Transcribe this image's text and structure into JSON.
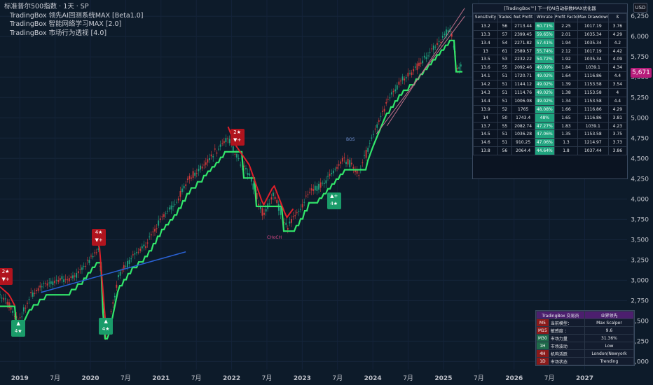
{
  "legend": {
    "symbol": "标准普尔500指数 · 1天 · SP",
    "indicators": [
      "TradingBox  领先AI回测系统MAX [Beta1.0]",
      "TradingBox  智能网络学习MAX [2.0]",
      "TradingBox  市场行为透视 [4.0]"
    ]
  },
  "currency": "USD",
  "last_price": "5,671",
  "colors": {
    "background": "#0d1b2a",
    "trend_up": "#32e66b",
    "trend_down": "#e0202a",
    "blue_line": "#2a62d6",
    "price_tag": "#b71c7a"
  },
  "chart_data": {
    "type": "line",
    "ylim": [
      1900,
      6450
    ],
    "xlim": [
      2018.72,
      2027.6
    ],
    "y_ticks": [
      2000,
      2250,
      2500,
      2750,
      3000,
      3250,
      3500,
      3750,
      4000,
      4250,
      4500,
      4750,
      5000,
      5250,
      5500,
      5750,
      6000,
      6250
    ],
    "y_tick_labels": [
      "2,000",
      "2,250",
      "2,500",
      "2,750",
      "3,000",
      "3,250",
      "3,500",
      "3,750",
      "4,000",
      "4,250",
      "4,500",
      "4,750",
      "5,000",
      "5,250",
      "5,500",
      "5,750",
      "6,000",
      "6,250"
    ],
    "x_ticks": [
      2019,
      2019.5,
      2020,
      2020.5,
      2021,
      2021.5,
      2022,
      2022.5,
      2023,
      2023.5,
      2024,
      2024.5,
      2025,
      2025.5,
      2026,
      2026.5,
      2027
    ],
    "x_tick_labels": [
      "2019",
      "7月",
      "2020",
      "7月",
      "2021",
      "7月",
      "2022",
      "7月",
      "2023",
      "7月",
      "2024",
      "7月",
      "2025",
      "7月",
      "2026",
      "7月",
      "2027"
    ],
    "series": [
      {
        "x": [
          2018.72,
          2018.85,
          2018.98,
          2019.15,
          2019.35,
          2019.5,
          2019.7,
          2019.9,
          2020.05,
          2020.12,
          2020.22,
          2020.4,
          2020.6,
          2020.8,
          2021.0,
          2021.2,
          2021.4,
          2021.6,
          2021.8,
          2021.95,
          2022.05,
          2022.25,
          2022.45,
          2022.6,
          2022.78,
          2022.95,
          2023.1,
          2023.25,
          2023.45,
          2023.6,
          2023.8,
          2024.0,
          2024.2,
          2024.4,
          2024.6,
          2024.8,
          2025.0,
          2025.1,
          2025.2,
          2025.27
        ],
        "values": [
          2800,
          2700,
          2480,
          2800,
          2950,
          3000,
          3000,
          3150,
          3320,
          3380,
          2290,
          3050,
          3300,
          3450,
          3750,
          3950,
          4250,
          4420,
          4600,
          4770,
          4550,
          4300,
          3800,
          4050,
          3650,
          3850,
          4100,
          4150,
          4350,
          4500,
          4300,
          4780,
          5200,
          5450,
          5600,
          5800,
          6000,
          6100,
          5600,
          5671
        ]
      }
    ]
  },
  "signals": [
    {
      "label": "2★",
      "sub": "▼+",
      "kind": "sell",
      "x": 2018.8,
      "y": 3050
    },
    {
      "label": "4★",
      "sub": "▲",
      "kind": "buy",
      "x": 2018.98,
      "y": 2410
    },
    {
      "label": "4★",
      "sub": "▼+",
      "kind": "sell",
      "x": 2020.12,
      "y": 3530
    },
    {
      "label": "4★",
      "sub": "▲",
      "kind": "buy",
      "x": 2020.22,
      "y": 2430
    },
    {
      "label": "2★",
      "sub": "▼+",
      "kind": "sell",
      "x": 2022.08,
      "y": 4760
    },
    {
      "label": "4★",
      "sub": "▲+",
      "kind": "buy",
      "x": 2023.45,
      "y": 3980
    }
  ],
  "annotations": [
    {
      "text": "BOS",
      "x": 2023.72,
      "y": 4730
    },
    {
      "text": "CHoCH",
      "x": 2022.6,
      "y": 3520
    }
  ],
  "optimizer": {
    "title": "[TradingBox™] 下一代AI自动参数MAX优化器",
    "headers": [
      "Sensitivity",
      "Trades",
      "Net Profit",
      "Winrate",
      "Profit Factor",
      "Max Drawdown",
      "ß"
    ],
    "rows": [
      [
        "13.2",
        "56",
        "2713.44",
        "60.71%",
        "2.25",
        "1017.19",
        "3.76"
      ],
      [
        "13.3",
        "57",
        "2399.45",
        "59.65%",
        "2.01",
        "1035.34",
        "4.29"
      ],
      [
        "13.4",
        "54",
        "2271.82",
        "57.41%",
        "1.94",
        "1035.34",
        "4.2"
      ],
      [
        "13",
        "61",
        "2589.57",
        "55.74%",
        "2.12",
        "1017.19",
        "4.42"
      ],
      [
        "13.5",
        "53",
        "2232.22",
        "54.72%",
        "1.92",
        "1035.34",
        "4.09"
      ],
      [
        "13.6",
        "55",
        "2092.46",
        "49.09%",
        "1.84",
        "1039.1",
        "4.34"
      ],
      [
        "14.1",
        "51",
        "1720.71",
        "49.02%",
        "1.64",
        "1116.86",
        "4.4"
      ],
      [
        "14.2",
        "51",
        "1144.12",
        "49.02%",
        "1.39",
        "1153.58",
        "3.54"
      ],
      [
        "14.3",
        "51",
        "1114.76",
        "49.02%",
        "1.38",
        "1153.58",
        "4"
      ],
      [
        "14.4",
        "51",
        "1006.08",
        "49.02%",
        "1.34",
        "1153.58",
        "4.4"
      ],
      [
        "13.9",
        "52",
        "1765",
        "48.08%",
        "1.66",
        "1116.86",
        "4.29"
      ],
      [
        "14",
        "50",
        "1743.4",
        "48%",
        "1.65",
        "1116.86",
        "3.81"
      ],
      [
        "13.7",
        "55",
        "2082.74",
        "47.27%",
        "1.83",
        "1039.1",
        "4.23"
      ],
      [
        "14.5",
        "51",
        "1036.28",
        "47.06%",
        "1.35",
        "1153.58",
        "3.75"
      ],
      [
        "14.6",
        "51",
        "910.25",
        "47.06%",
        "1.3",
        "1214.97",
        "3.73"
      ],
      [
        "13.8",
        "56",
        "2064.4",
        "44.64%",
        "1.8",
        "1037.44",
        "3.86"
      ]
    ]
  },
  "info_panel": {
    "header_left": "TradingBox 交易员",
    "header_right": "业界领先",
    "rows": [
      {
        "tf": "M5",
        "label": "当前模型：",
        "value": "Max Scalper"
      },
      {
        "tf": "M15",
        "label": "敏感度 ：",
        "value": "9.6"
      },
      {
        "tf": "M30",
        "label": "市场力量",
        "value": "31.36%"
      },
      {
        "tf": "1H",
        "label": "市场波动",
        "value": "Low"
      },
      {
        "tf": "4H",
        "label": "机构活跃",
        "value": "London/Newyork"
      },
      {
        "tf": "1D",
        "label": "市场状态",
        "value": "Trending"
      }
    ]
  }
}
